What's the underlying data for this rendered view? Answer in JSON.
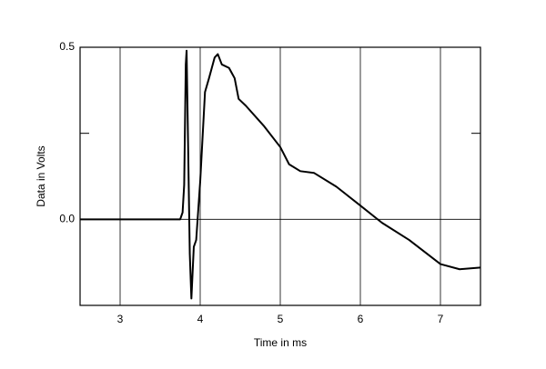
{
  "chart_data": {
    "type": "line",
    "x_label": "Time in ms",
    "y_label": "Data in Volts",
    "xlim": [
      2.5,
      7.5
    ],
    "xticks": [
      3,
      4,
      5,
      6,
      7
    ],
    "ylim": [
      -0.25,
      0.5
    ],
    "yticks": [
      {
        "value": 0,
        "label": "0.0"
      },
      0.5
    ],
    "minor_yticks": [
      0.25
    ],
    "grid": true,
    "color": "#000000",
    "series": [
      {
        "x": [
          2.5,
          3.75,
          3.78,
          3.8,
          3.82,
          3.83,
          3.85,
          3.87,
          3.89,
          3.92,
          3.95,
          4.0,
          4.06,
          4.11,
          4.18,
          4.22,
          4.27,
          4.36,
          4.43,
          4.48,
          4.57,
          4.8,
          5.0,
          5.11,
          5.25,
          5.42,
          5.7,
          6.0,
          6.27,
          6.61,
          7.0,
          7.24,
          7.5
        ],
        "values": [
          0,
          0,
          0.02,
          0.1,
          0.45,
          0.49,
          0.2,
          -0.1,
          -0.23,
          -0.08,
          -0.06,
          0.11,
          0.37,
          0.41,
          0.47,
          0.48,
          0.45,
          0.44,
          0.41,
          0.35,
          0.33,
          0.27,
          0.21,
          0.16,
          0.14,
          0.135,
          0.095,
          0.04,
          -0.01,
          -0.06,
          -0.13,
          -0.145,
          -0.14
        ]
      }
    ]
  }
}
